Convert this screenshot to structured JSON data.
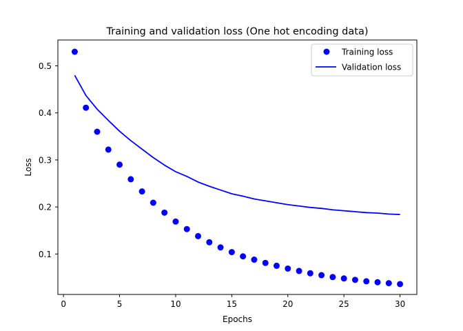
{
  "chart_data": {
    "type": "scatter",
    "title": "Training and validation loss (One hot encoding data)",
    "xlabel": "Epochs",
    "ylabel": "Loss",
    "xlim": [
      -0.5,
      31.5
    ],
    "ylim": [
      0.014,
      0.555
    ],
    "xticks": [
      0,
      5,
      10,
      15,
      20,
      25,
      30
    ],
    "yticks": [
      0.1,
      0.2,
      0.3,
      0.4,
      0.5
    ],
    "grid": false,
    "legend_position": "top-right",
    "colors": {
      "series": "#0000ff"
    },
    "series": [
      {
        "name": "Training loss",
        "style": "dots",
        "x": [
          1,
          2,
          3,
          4,
          5,
          6,
          7,
          8,
          9,
          10,
          11,
          12,
          13,
          14,
          15,
          16,
          17,
          18,
          19,
          20,
          21,
          22,
          23,
          24,
          25,
          26,
          27,
          28,
          29,
          30
        ],
        "y": [
          0.53,
          0.411,
          0.36,
          0.322,
          0.29,
          0.259,
          0.233,
          0.209,
          0.188,
          0.169,
          0.153,
          0.138,
          0.125,
          0.114,
          0.104,
          0.095,
          0.088,
          0.081,
          0.075,
          0.069,
          0.064,
          0.059,
          0.055,
          0.051,
          0.048,
          0.045,
          0.042,
          0.04,
          0.038,
          0.036
        ]
      },
      {
        "name": "Validation loss",
        "style": "line",
        "x": [
          1,
          2,
          3,
          4,
          5,
          6,
          7,
          8,
          9,
          10,
          11,
          12,
          13,
          14,
          15,
          16,
          17,
          18,
          19,
          20,
          21,
          22,
          23,
          24,
          25,
          26,
          27,
          28,
          29,
          30
        ],
        "y": [
          0.48,
          0.437,
          0.408,
          0.384,
          0.361,
          0.341,
          0.323,
          0.305,
          0.289,
          0.275,
          0.265,
          0.253,
          0.244,
          0.236,
          0.228,
          0.223,
          0.217,
          0.213,
          0.209,
          0.205,
          0.202,
          0.199,
          0.197,
          0.194,
          0.192,
          0.19,
          0.188,
          0.187,
          0.185,
          0.184
        ]
      }
    ]
  }
}
